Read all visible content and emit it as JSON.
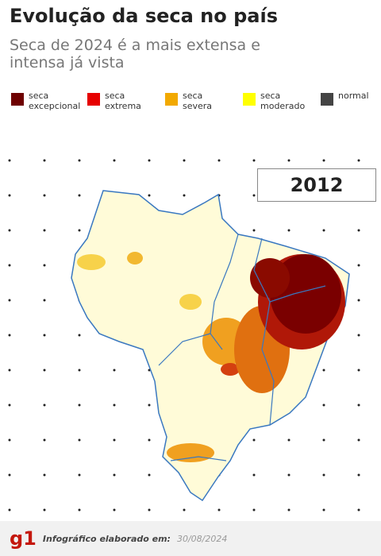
{
  "header": {
    "title": "Evolução da seca no país",
    "subtitle": "Seca de 2024 é a mais extensa e intensa já vista"
  },
  "legend": [
    {
      "label": "seca excepcional",
      "color": "#6e0000"
    },
    {
      "label": "seca extrema",
      "color": "#e60000"
    },
    {
      "label": "seca severa",
      "color": "#f2a900"
    },
    {
      "label": "seca moderado",
      "color": "#ffff00"
    },
    {
      "label": "normal",
      "color": "#444444"
    }
  ],
  "map": {
    "year": "2012"
  },
  "footer": {
    "brand": "g1",
    "credit": "Infográfico elaborado em:",
    "date": "30/08/2024"
  }
}
